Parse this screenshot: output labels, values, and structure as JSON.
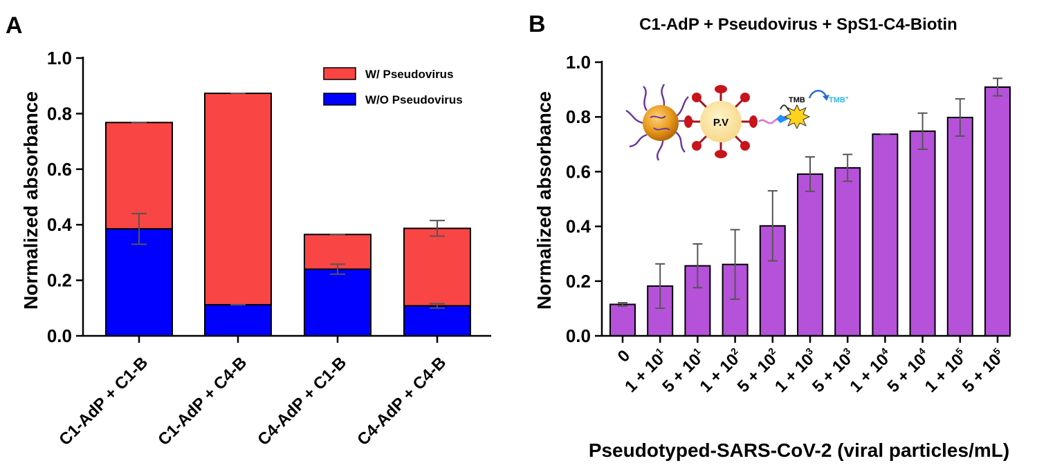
{
  "colors": {
    "with": "#fa4545",
    "without": "#0000ff",
    "purple": "#b552d9",
    "err": "#555555"
  },
  "panelA": {
    "label": "A",
    "legend": {
      "with": "W/ Pseudovirus",
      "without": "W/O Pseudovirus"
    }
  },
  "panelB": {
    "label": "B",
    "title": "C1-AdP + Pseudovirus + SpS1-C4-Biotin",
    "inset": {
      "pv": "P.V",
      "tmb": "TMB",
      "tmbplus": "TMB",
      "tmbplus_sup": "+"
    }
  },
  "chart_data": [
    {
      "type": "bar",
      "stacked": true,
      "ylabel": "Normalized absorbance",
      "xlabel": "",
      "ylim": [
        0,
        1.0
      ],
      "yticks": [
        "0.0",
        "0.2",
        "0.4",
        "0.6",
        "0.8",
        "1.0"
      ],
      "categories": [
        "C1-AdP + C1-B",
        "C1-AdP + C4-B",
        "C4-AdP + C1-B",
        "C4-AdP + C4-B"
      ],
      "series": [
        {
          "name": "W/O Pseudovirus",
          "values": [
            0.385,
            0.112,
            0.24,
            0.108
          ],
          "errors": [
            0.055,
            0.0,
            0.018,
            0.008
          ]
        },
        {
          "name": "W/ Pseudovirus",
          "total": [
            0.768,
            0.873,
            0.365,
            0.387
          ],
          "errors": [
            0.0,
            0.0,
            0.0,
            0.028
          ]
        }
      ]
    },
    {
      "type": "bar",
      "title": "C1-AdP + Pseudovirus + SpS1-C4-Biotin",
      "ylabel": "Normalized absorbance",
      "xlabel": "Pseudotyped-SARS-CoV-2 (viral particles/mL)",
      "ylim": [
        0,
        1.0
      ],
      "yticks": [
        "0.0",
        "0.2",
        "0.4",
        "0.6",
        "0.8",
        "1.0"
      ],
      "categories": [
        {
          "base": "0",
          "exp": ""
        },
        {
          "base": "1 + 10",
          "exp": "1"
        },
        {
          "base": "5 + 10",
          "exp": "1"
        },
        {
          "base": "1 + 10",
          "exp": "2"
        },
        {
          "base": "5 + 10",
          "exp": "2"
        },
        {
          "base": "1 + 10",
          "exp": "3"
        },
        {
          "base": "5 + 10",
          "exp": "3"
        },
        {
          "base": "1 + 10",
          "exp": "4"
        },
        {
          "base": "5 + 10",
          "exp": "4"
        },
        {
          "base": "1 + 10",
          "exp": "5"
        },
        {
          "base": "5 + 10",
          "exp": "5"
        }
      ],
      "values": [
        0.115,
        0.182,
        0.256,
        0.261,
        0.402,
        0.591,
        0.614,
        0.737,
        0.748,
        0.798,
        0.909
      ],
      "errors": [
        0.006,
        0.081,
        0.08,
        0.127,
        0.128,
        0.063,
        0.049,
        0.0,
        0.066,
        0.068,
        0.032
      ]
    }
  ]
}
